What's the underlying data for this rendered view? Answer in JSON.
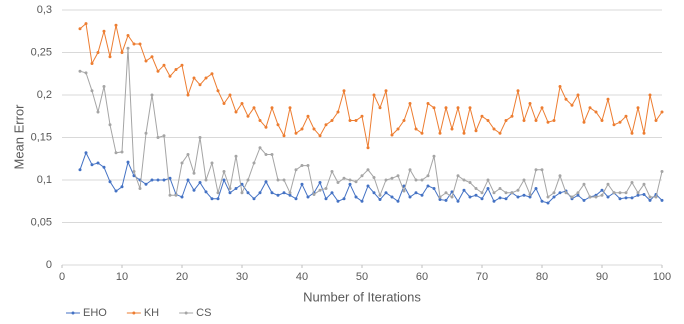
{
  "chart_data": {
    "type": "line",
    "x_label": "Number of Iterations",
    "y_label": "Mean Error",
    "x": [
      3,
      4,
      5,
      6,
      7,
      8,
      9,
      10,
      11,
      12,
      13,
      14,
      15,
      16,
      17,
      18,
      19,
      20,
      21,
      22,
      23,
      24,
      25,
      26,
      27,
      28,
      29,
      30,
      31,
      32,
      33,
      34,
      35,
      36,
      37,
      38,
      39,
      40,
      41,
      42,
      43,
      44,
      45,
      46,
      47,
      48,
      49,
      50,
      51,
      52,
      53,
      54,
      55,
      56,
      57,
      58,
      59,
      60,
      61,
      62,
      63,
      64,
      65,
      66,
      67,
      68,
      69,
      70,
      71,
      72,
      73,
      74,
      75,
      76,
      77,
      78,
      79,
      80,
      81,
      82,
      83,
      84,
      85,
      86,
      87,
      88,
      89,
      90,
      91,
      92,
      93,
      94,
      95,
      96,
      97,
      98,
      99,
      100
    ],
    "series": [
      {
        "name": "EHO",
        "color": "#4472c4",
        "values": [
          0.112,
          0.132,
          0.118,
          0.12,
          0.115,
          0.098,
          0.087,
          0.092,
          0.121,
          0.105,
          0.1,
          0.095,
          0.1,
          0.1,
          0.1,
          0.102,
          0.083,
          0.08,
          0.1,
          0.088,
          0.097,
          0.086,
          0.078,
          0.078,
          0.1,
          0.085,
          0.09,
          0.095,
          0.085,
          0.078,
          0.085,
          0.098,
          0.085,
          0.082,
          0.085,
          0.082,
          0.078,
          0.095,
          0.08,
          0.085,
          0.097,
          0.078,
          0.085,
          0.075,
          0.078,
          0.095,
          0.08,
          0.075,
          0.093,
          0.085,
          0.077,
          0.085,
          0.08,
          0.075,
          0.093,
          0.08,
          0.085,
          0.082,
          0.093,
          0.09,
          0.077,
          0.076,
          0.086,
          0.075,
          0.088,
          0.08,
          0.082,
          0.078,
          0.09,
          0.075,
          0.079,
          0.078,
          0.085,
          0.08,
          0.082,
          0.08,
          0.09,
          0.075,
          0.073,
          0.08,
          0.085,
          0.087,
          0.078,
          0.082,
          0.076,
          0.08,
          0.082,
          0.088,
          0.08,
          0.085,
          0.078,
          0.079,
          0.079,
          0.082,
          0.083,
          0.076,
          0.083,
          0.076
        ]
      },
      {
        "name": "KH",
        "color": "#ed7d31",
        "values": [
          0.278,
          0.284,
          0.237,
          0.25,
          0.275,
          0.245,
          0.282,
          0.25,
          0.27,
          0.26,
          0.26,
          0.24,
          0.245,
          0.228,
          0.235,
          0.222,
          0.23,
          0.235,
          0.2,
          0.22,
          0.212,
          0.22,
          0.225,
          0.205,
          0.19,
          0.2,
          0.18,
          0.19,
          0.175,
          0.185,
          0.17,
          0.162,
          0.185,
          0.165,
          0.152,
          0.185,
          0.155,
          0.16,
          0.175,
          0.16,
          0.152,
          0.165,
          0.17,
          0.18,
          0.205,
          0.17,
          0.17,
          0.175,
          0.138,
          0.2,
          0.185,
          0.205,
          0.153,
          0.16,
          0.17,
          0.19,
          0.16,
          0.155,
          0.19,
          0.185,
          0.155,
          0.185,
          0.16,
          0.185,
          0.155,
          0.185,
          0.158,
          0.175,
          0.17,
          0.16,
          0.155,
          0.17,
          0.175,
          0.205,
          0.17,
          0.19,
          0.17,
          0.185,
          0.168,
          0.17,
          0.21,
          0.195,
          0.188,
          0.2,
          0.168,
          0.185,
          0.18,
          0.17,
          0.195,
          0.165,
          0.168,
          0.175,
          0.155,
          0.185,
          0.155,
          0.2,
          0.17,
          0.18
        ]
      },
      {
        "name": "CS",
        "color": "#a5a5a5",
        "values": [
          0.228,
          0.226,
          0.205,
          0.18,
          0.21,
          0.165,
          0.132,
          0.133,
          0.255,
          0.11,
          0.09,
          0.155,
          0.2,
          0.15,
          0.152,
          0.082,
          0.082,
          0.12,
          0.13,
          0.108,
          0.15,
          0.1,
          0.12,
          0.085,
          0.11,
          0.09,
          0.128,
          0.085,
          0.1,
          0.12,
          0.138,
          0.13,
          0.13,
          0.1,
          0.1,
          0.085,
          0.112,
          0.117,
          0.117,
          0.083,
          0.088,
          0.09,
          0.11,
          0.097,
          0.102,
          0.1,
          0.098,
          0.105,
          0.112,
          0.103,
          0.082,
          0.1,
          0.102,
          0.105,
          0.087,
          0.112,
          0.1,
          0.1,
          0.105,
          0.128,
          0.08,
          0.085,
          0.08,
          0.105,
          0.1,
          0.097,
          0.09,
          0.085,
          0.1,
          0.085,
          0.09,
          0.085,
          0.085,
          0.088,
          0.1,
          0.083,
          0.112,
          0.112,
          0.08,
          0.085,
          0.105,
          0.085,
          0.08,
          0.085,
          0.095,
          0.08,
          0.08,
          0.082,
          0.095,
          0.085,
          0.085,
          0.085,
          0.097,
          0.085,
          0.095,
          0.08,
          0.08,
          0.11
        ]
      }
    ],
    "xlim": [
      0,
      100
    ],
    "xticks": [
      0,
      10,
      20,
      30,
      40,
      50,
      60,
      70,
      80,
      90,
      100
    ],
    "ylim": [
      0,
      0.3
    ],
    "yticks": [
      {
        "value": 0,
        "label": "0"
      },
      {
        "value": 0.05,
        "label": "0,05"
      },
      {
        "value": 0.1,
        "label": "0,1"
      },
      {
        "value": 0.15,
        "label": "0,15"
      },
      {
        "value": 0.2,
        "label": "0,2"
      },
      {
        "value": 0.25,
        "label": "0,25"
      },
      {
        "value": 0.3,
        "label": "0,3"
      }
    ],
    "grid": true,
    "legend": "bottom-left"
  }
}
